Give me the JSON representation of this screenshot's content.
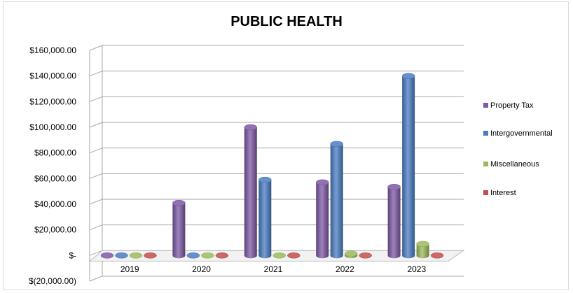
{
  "chart_data": {
    "type": "bar",
    "title": "PUBLIC HEALTH",
    "xlabel": "",
    "ylabel": "",
    "categories": [
      "2019",
      "2020",
      "2021",
      "2022",
      "2023"
    ],
    "ylim": [
      -20000,
      160000
    ],
    "yticks": [
      -20000,
      0,
      20000,
      40000,
      60000,
      80000,
      100000,
      120000,
      140000,
      160000
    ],
    "ytick_labels": [
      "$(20,000.00)",
      "$-",
      "$20,000.00",
      "$40,000.00",
      "$60,000.00",
      "$80,000.00",
      "$100,000.00",
      "$120,000.00",
      "$140,000.00",
      "$160,000.00"
    ],
    "grid": true,
    "legend_position": "right",
    "series": [
      {
        "name": "Property Tax",
        "color": "#7e58a6",
        "values": [
          0,
          41000,
          100000,
          57000,
          53500
        ]
      },
      {
        "name": "Intergovernmental",
        "color": "#4a7cc4",
        "values": [
          0,
          0,
          59000,
          87000,
          140000
        ]
      },
      {
        "name": "Miscellaneous",
        "color": "#9bbb59",
        "values": [
          0,
          0,
          0,
          1500,
          9000
        ]
      },
      {
        "name": "Interest",
        "color": "#c0504d",
        "values": [
          0,
          0,
          0,
          0,
          0
        ]
      }
    ]
  }
}
